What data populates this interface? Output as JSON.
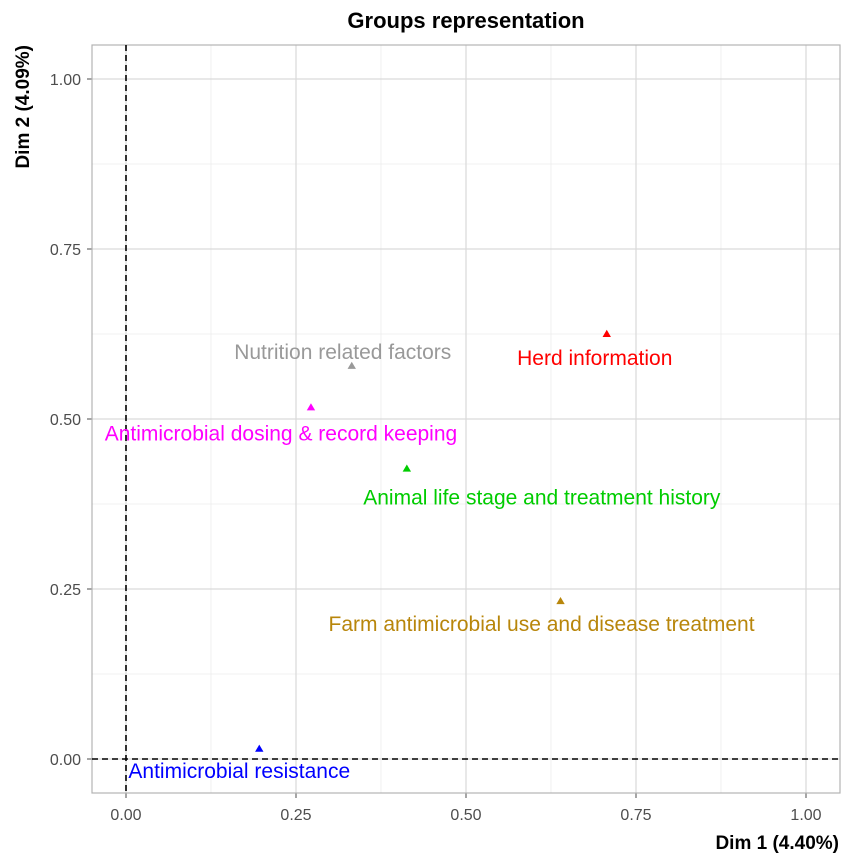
{
  "chart_data": {
    "type": "scatter",
    "title": "Groups representation",
    "xlabel": "Dim 1 (4.40%)",
    "ylabel": "Dim 2 (4.09%)",
    "xlim": [
      -0.05,
      1.05
    ],
    "ylim": [
      -0.05,
      1.05
    ],
    "xticks": [
      "0.00",
      "0.25",
      "0.50",
      "0.75",
      "1.00"
    ],
    "yticks": [
      "0.00",
      "0.25",
      "0.50",
      "0.75",
      "1.00"
    ],
    "grid": true,
    "reference_lines": {
      "x": 0,
      "y": 0,
      "style": "dashed"
    },
    "points": [
      {
        "label": "Nutrition related factors",
        "x": 0.332,
        "y": 0.578,
        "color": "#999999"
      },
      {
        "label": "Herd information",
        "x": 0.707,
        "y": 0.625,
        "color": "#ff0000"
      },
      {
        "label": "Antimicrobial dosing & record keeping",
        "x": 0.272,
        "y": 0.517,
        "color": "#ff00ff"
      },
      {
        "label": "Animal life stage and treatment history",
        "x": 0.413,
        "y": 0.427,
        "color": "#00cc00"
      },
      {
        "label": "Farm antimicrobial use and disease treatment",
        "x": 0.639,
        "y": 0.232,
        "color": "#b8860b"
      },
      {
        "label": "Antimicrobial resistance",
        "x": 0.196,
        "y": 0.015,
        "color": "#0000ff"
      }
    ]
  }
}
